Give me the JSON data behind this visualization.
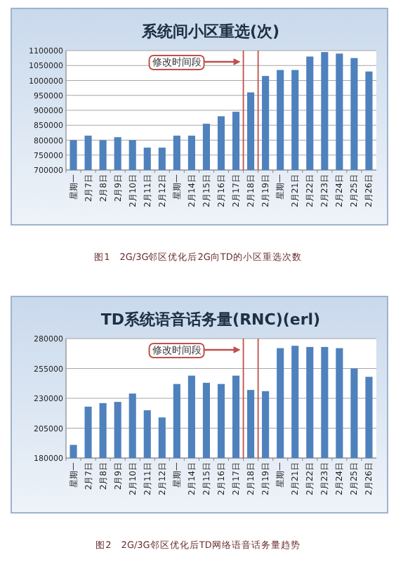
{
  "chart_data": [
    {
      "type": "bar",
      "title": "系统间小区重选(次)",
      "categories": [
        "星期一",
        "2月7日",
        "2月8日",
        "2月9日",
        "2月10日",
        "2月11日",
        "2月12日",
        "星期一",
        "2月14日",
        "2月15日",
        "2月16日",
        "2月17日",
        "2月18日",
        "2月19日",
        "星期一",
        "2月21日",
        "2月22日",
        "2月23日",
        "2月24日",
        "2月25日",
        "2月26日"
      ],
      "values": [
        800000,
        815000,
        800000,
        810000,
        800000,
        775000,
        775000,
        815000,
        815000,
        855000,
        880000,
        895000,
        960000,
        1015000,
        1035000,
        1035000,
        1080000,
        1095000,
        1090000,
        1075000,
        1030000
      ],
      "color": "#4f81bd",
      "ylim": [
        700000,
        1100000
      ],
      "yticks": [
        700000,
        750000,
        800000,
        850000,
        900000,
        950000,
        1000000,
        1050000,
        1100000
      ],
      "grid": "y",
      "annotations": [
        "修改时间段",
        "图1　2G/3G邻区优化后2G向TD的小区重选次数"
      ]
    },
    {
      "type": "bar",
      "title": "TD系统语音话务量(RNC)(erl)",
      "categories": [
        "星期一",
        "2月7日",
        "2月8日",
        "2月9日",
        "2月10日",
        "2月11日",
        "2月12日",
        "星期一",
        "2月14日",
        "2月15日",
        "2月16日",
        "2月17日",
        "2月18日",
        "2月19日",
        "星期一",
        "2月21日",
        "2月22日",
        "2月23日",
        "2月24日",
        "2月25日",
        "2月26日"
      ],
      "values": [
        191000,
        223000,
        226000,
        227000,
        234000,
        220000,
        214000,
        242000,
        249000,
        243000,
        242000,
        249000,
        237000,
        236000,
        272000,
        274000,
        273000,
        273000,
        272000,
        255000,
        248000
      ],
      "color": "#4f81bd",
      "ylim": [
        180000,
        280000
      ],
      "yticks": [
        180000,
        205000,
        230000,
        255000,
        280000
      ],
      "grid": "y",
      "annotations": [
        "修改时间段",
        "图2　2G/3G邻区优化后TD网络语音话务量趋势"
      ]
    }
  ]
}
